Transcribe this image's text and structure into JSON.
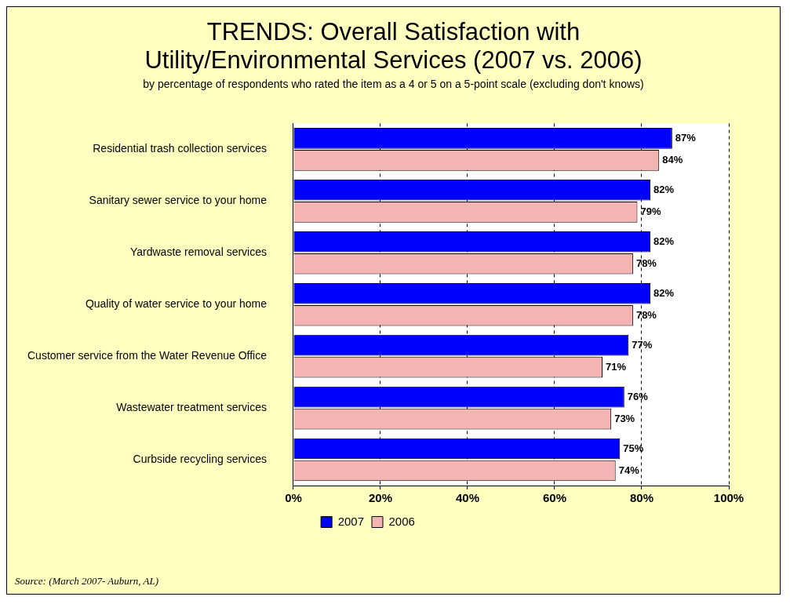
{
  "chart_data": {
    "type": "bar",
    "orientation": "horizontal",
    "title": "TRENDS:  Overall Satisfaction with Utility/Environmental Services (2007 vs. 2006)",
    "subtitle": "by percentage of respondents who rated the item as a 4 or 5 on a 5-point scale (excluding don't knows)",
    "categories": [
      "Residential trash collection services",
      "Sanitary sewer service to your home",
      "Yardwaste removal services",
      "Quality of water service to your home",
      "Customer service from the Water Revenue Office",
      "Wastewater treatment services",
      "Curbside recycling services"
    ],
    "series": [
      {
        "name": "2007",
        "color": "#0000ff",
        "values": [
          87,
          82,
          82,
          82,
          77,
          76,
          75
        ],
        "value_labels": [
          "87%",
          "82%",
          "82%",
          "82%",
          "77%",
          "76%",
          "75%"
        ]
      },
      {
        "name": "2006",
        "color": "#f4b4b4",
        "values": [
          84,
          79,
          78,
          78,
          71,
          73,
          74
        ],
        "value_labels": [
          "84%",
          "79%",
          "78%",
          "78%",
          "71%",
          "73%",
          "74%"
        ]
      }
    ],
    "xlim": [
      0,
      100
    ],
    "xticks": [
      {
        "value": 0,
        "label": "0%"
      },
      {
        "value": 20,
        "label": "20%"
      },
      {
        "value": 40,
        "label": "40%"
      },
      {
        "value": 60,
        "label": "60%"
      },
      {
        "value": 80,
        "label": "80%"
      },
      {
        "value": 100,
        "label": "100%"
      }
    ],
    "grid": "x",
    "legend": "bottom",
    "annotations": [
      "Source: (March 2007- Auburn, AL)"
    ]
  }
}
